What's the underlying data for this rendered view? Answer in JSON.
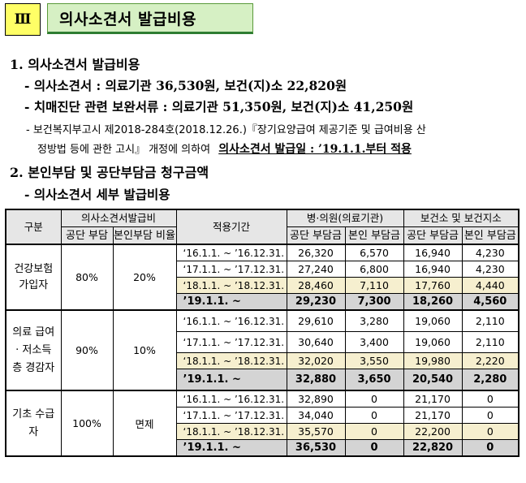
{
  "header": {
    "section_number": "Ⅲ",
    "title": "의사소견서 발급비용"
  },
  "sec1": {
    "heading": "1. 의사소견서 발급비용",
    "bullet1": "- 의사소견서 : 의료기관 36,530원, 보건(지)소 22,820원",
    "bullet2": "- 치매진단 관련 보완서류 : 의료기관 51,350원, 보건(지)소 41,250원",
    "note_line1": "- 보건복지부고시 제2018-284호(2018.12.26.)『장기요양급여 제공기준 및 급여비용 산",
    "note_line2": "정방법 등에 관한 고시』 개정에 의하여",
    "note_emph": "의사소견서 발급일 : ’19.1.1.부터 적용"
  },
  "sec2": {
    "heading": "2. 본인부담 및 공단부담금 청구금액",
    "bullet1": "- 의사소견서 세부 발급비용"
  },
  "table": {
    "headers": {
      "group": "구분",
      "issue_cost": "의사소견서발급비",
      "public_ratio": "공단 부담",
      "self_ratio": "본인부담 비율",
      "period": "적용기간",
      "hospital": "병·의원(의료기관)",
      "health_center": "보건소 및 보건지소",
      "public_amt": "공단 부담금",
      "self_amt": "본인 부담금"
    },
    "groups": [
      {
        "label": "건강보험 가입자",
        "public_ratio": "80%",
        "self_ratio": "20%",
        "rows": [
          {
            "period": "‘16.1.1. ~ ’16.12.31.",
            "h_public": "26,320",
            "h_self": "6,570",
            "c_public": "16,940",
            "c_self": "4,230"
          },
          {
            "period": "‘17.1.1. ~ ’17.12.31.",
            "h_public": "27,240",
            "h_self": "6,800",
            "c_public": "16,940",
            "c_self": "4,230"
          },
          {
            "period": "‘18.1.1. ~ ’18.12.31.",
            "h_public": "28,460",
            "h_self": "7,110",
            "c_public": "17,760",
            "c_self": "4,440"
          },
          {
            "period": "’19.1.1. ~",
            "h_public": "29,230",
            "h_self": "7,300",
            "c_public": "18,260",
            "c_self": "4,560"
          }
        ]
      },
      {
        "label": "의료 급여 · 저소득층 경감자",
        "public_ratio": "90%",
        "self_ratio": "10%",
        "rows": [
          {
            "period": "‘16.1.1. ~ ’16.12.31.",
            "h_public": "29,610",
            "h_self": "3,280",
            "c_public": "19,060",
            "c_self": "2,110"
          },
          {
            "period": "‘17.1.1. ~ ’17.12.31.",
            "h_public": "30,640",
            "h_self": "3,400",
            "c_public": "19,060",
            "c_self": "2,110"
          },
          {
            "period": "‘18.1.1. ~ ’18.12.31.",
            "h_public": "32,020",
            "h_self": "3,550",
            "c_public": "19,980",
            "c_self": "2,220"
          },
          {
            "period": "’19.1.1. ~",
            "h_public": "32,880",
            "h_self": "3,650",
            "c_public": "20,540",
            "c_self": "2,280"
          }
        ]
      },
      {
        "label": "기초 수급자",
        "public_ratio": "100%",
        "self_ratio": "면제",
        "rows": [
          {
            "period": "‘16.1.1. ~ ’16.12.31.",
            "h_public": "32,890",
            "h_self": "0",
            "c_public": "21,170",
            "c_self": "0"
          },
          {
            "period": "‘17.1.1. ~ ’17.12.31.",
            "h_public": "34,040",
            "h_self": "0",
            "c_public": "21,170",
            "c_self": "0"
          },
          {
            "period": "‘18.1.1. ~ ’18.12.31.",
            "h_public": "35,570",
            "h_self": "0",
            "c_public": "22,200",
            "c_self": "0"
          },
          {
            "period": "’19.1.1. ~",
            "h_public": "36,530",
            "h_self": "0",
            "c_public": "22,820",
            "c_self": "0"
          }
        ]
      }
    ]
  },
  "colors": {
    "section_number_bg": "#ffff66",
    "title_bg": "#d6f0c4",
    "header_cell_bg": "#e6e6e6",
    "row_2018_bg": "#f6efcf",
    "row_2019_bg": "#d4d4d4"
  }
}
